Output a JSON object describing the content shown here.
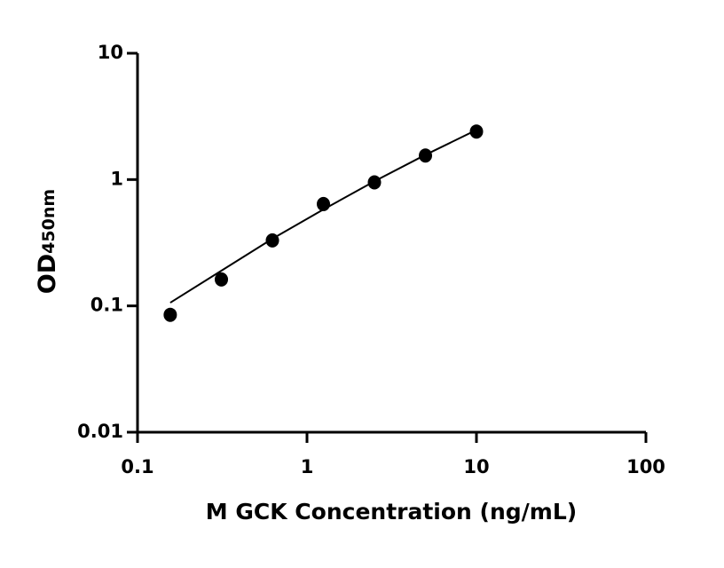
{
  "chart_data": {
    "type": "scatter",
    "x_label": "M GCK Concentration (ng/mL)",
    "y_label": "OD",
    "y_label_sub": "450nm",
    "xscale": "log",
    "yscale": "log",
    "xlim": [
      0.1,
      100
    ],
    "xticks": [
      0.1,
      1,
      10,
      100
    ],
    "ylim": [
      0.01,
      10
    ],
    "yticks": [
      0.01,
      0.1,
      1,
      10
    ],
    "series": [
      {
        "color": "#000000",
        "marker": "circle",
        "x": [
          0.156,
          0.3125,
          0.625,
          1.25,
          2.5,
          5,
          10
        ],
        "values": [
          0.085,
          0.162,
          0.33,
          0.64,
          0.95,
          1.55,
          2.4
        ]
      },
      {
        "color": "#000000",
        "marker": "line",
        "x": [
          0.156,
          0.3125,
          0.625,
          1.25,
          2.5,
          5,
          10
        ],
        "values": [
          0.106,
          0.19,
          0.34,
          0.58,
          0.97,
          1.57,
          2.47
        ]
      }
    ]
  }
}
